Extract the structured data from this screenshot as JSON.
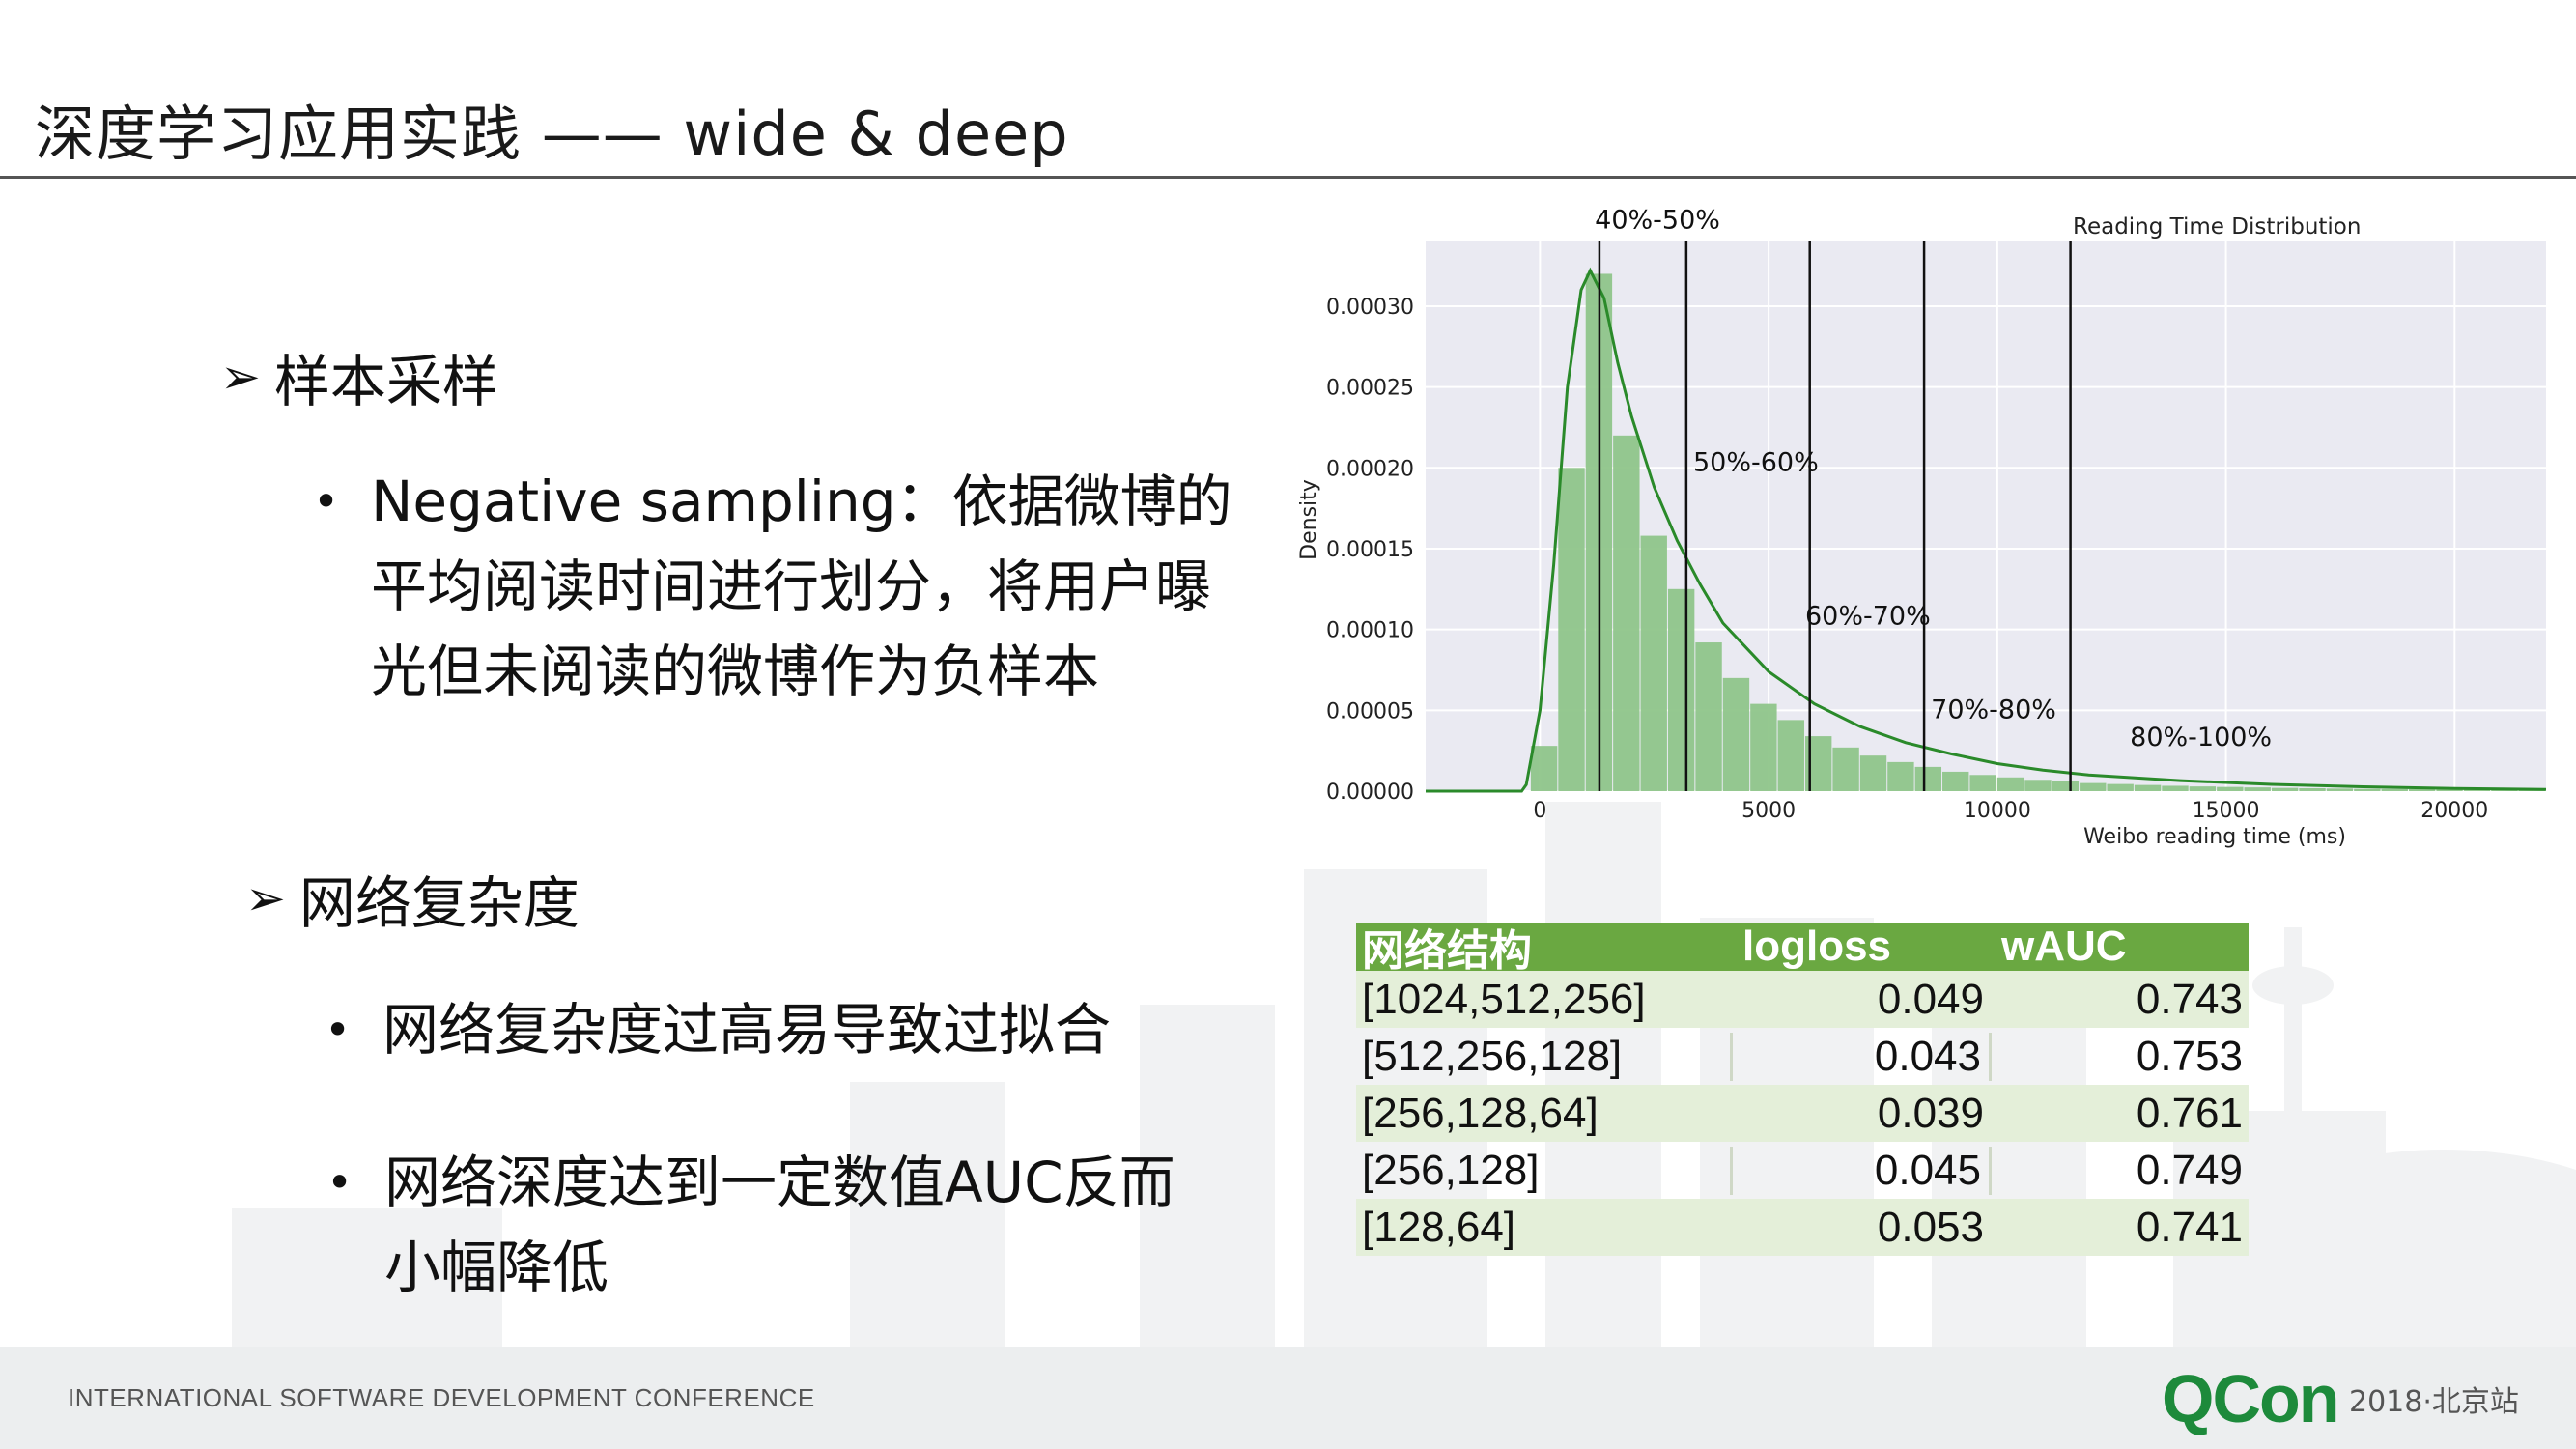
{
  "slide": {
    "title": "深度学习应用实践 ——  wide & deep"
  },
  "sections": [
    {
      "label": "样本采样",
      "bullets": [
        "Negative sampling：依据微博的平均阅读时间进行划分，将用户曝光但未阅读的微博作为负样本"
      ]
    },
    {
      "label": "网络复杂度",
      "bullets": [
        "网络复杂度过高易导致过拟合",
        "网络深度达到一定数值AUC反而小幅降低"
      ]
    }
  ],
  "bullet_lines": {
    "b1": [
      "Negative sampling：依据微博的",
      "平均阅读时间进行划分，将用户曝",
      "光但未阅读的微博作为负样本"
    ],
    "b2": [
      "网络复杂度过高易导致过拟合"
    ],
    "b3": [
      "网络深度达到一定数值AUC反而",
      "小幅降低"
    ]
  },
  "chart_data": {
    "type": "bar",
    "title": "Reading Time Distribution",
    "xlabel": "Weibo reading time (ms)",
    "ylabel": "Density",
    "xlim": [
      -2500,
      22000
    ],
    "ylim": [
      0,
      0.00034
    ],
    "xticks": [
      0,
      5000,
      10000,
      15000,
      20000
    ],
    "yticks": [
      0.0,
      5e-05,
      0.0001,
      0.00015,
      0.0002,
      0.00025,
      0.0003
    ],
    "ytick_labels": [
      "0.00000",
      "0.00005",
      "0.00010",
      "0.00015",
      "0.00020",
      "0.00025",
      "0.00030"
    ],
    "bin_width": 600,
    "bins_start": -200,
    "bar_values": [
      2.8e-05,
      0.0002,
      0.00032,
      0.00022,
      0.000158,
      0.000125,
      9.2e-05,
      7e-05,
      5.4e-05,
      4.4e-05,
      3.4e-05,
      2.7e-05,
      2.2e-05,
      1.8e-05,
      1.5e-05,
      1.2e-05,
      1e-05,
      8.5e-06,
      7e-06,
      6e-06,
      5e-06,
      4.4e-06,
      3.8e-06,
      3.3e-06,
      2.9e-06,
      2.6e-06,
      2.3e-06,
      2e-06,
      1.8e-06,
      1.6e-06,
      1.4e-06,
      1.3e-06,
      1.2e-06,
      1.1e-06,
      1e-06,
      9e-07,
      8e-07
    ],
    "kde_curve": [
      [
        -2500,
        0
      ],
      [
        -400,
        0
      ],
      [
        -300,
        4e-06
      ],
      [
        0,
        5e-05
      ],
      [
        300,
        0.00014
      ],
      [
        600,
        0.00025
      ],
      [
        900,
        0.00031
      ],
      [
        1100,
        0.000322
      ],
      [
        1400,
        0.000305
      ],
      [
        1700,
        0.000265
      ],
      [
        2000,
        0.000232
      ],
      [
        2500,
        0.000188
      ],
      [
        3000,
        0.000155
      ],
      [
        3500,
        0.000128
      ],
      [
        4000,
        0.000104
      ],
      [
        5000,
        7.4e-05
      ],
      [
        6000,
        5.4e-05
      ],
      [
        7000,
        4e-05
      ],
      [
        8000,
        3e-05
      ],
      [
        9000,
        2.3e-05
      ],
      [
        10000,
        1.7e-05
      ],
      [
        11000,
        1.3e-05
      ],
      [
        12000,
        1e-05
      ],
      [
        14000,
        6.5e-06
      ],
      [
        16000,
        4.2e-06
      ],
      [
        18000,
        2.7e-06
      ],
      [
        20000,
        1.7e-06
      ],
      [
        22000,
        1e-06
      ]
    ],
    "vlines": [
      1300,
      3200,
      5900,
      8400,
      11600
    ],
    "annotations": [
      {
        "text": "40%-50%",
        "x": 1200,
        "y": 0.000348
      },
      {
        "text": "50%-60%",
        "x": 3350,
        "y": 0.000198
      },
      {
        "text": "60%-70%",
        "x": 5800,
        "y": 0.000103
      },
      {
        "text": "70%-80%",
        "x": 8550,
        "y": 4.5e-05
      },
      {
        "text": "80%-100%",
        "x": 12900,
        "y": 2.8e-05
      }
    ],
    "colors": {
      "bar": "#8fc58a",
      "curve": "#2a8a2a",
      "bg": "#eaeaf2",
      "vline": "#111111"
    }
  },
  "table": {
    "headers": [
      "网络结构",
      "logloss",
      "wAUC"
    ],
    "rows": [
      {
        "structure": "[1024,512,256]",
        "logloss": "0.049",
        "wauc": "0.743"
      },
      {
        "structure": "[512,256,128]",
        "logloss": "0.043",
        "wauc": "0.753"
      },
      {
        "structure": "[256,128,64]",
        "logloss": "0.039",
        "wauc": "0.761"
      },
      {
        "structure": "[256,128]",
        "logloss": "0.045",
        "wauc": "0.749"
      },
      {
        "structure": "[128,64]",
        "logloss": "0.053",
        "wauc": "0.741"
      }
    ],
    "colors": {
      "header": "#6aa841",
      "alt_row": "#e4efd9"
    }
  },
  "footer": {
    "conference": "INTERNATIONAL SOFTWARE DEVELOPMENT CONFERENCE",
    "brand": "QCon",
    "brand_sub": "2018·北京站"
  }
}
